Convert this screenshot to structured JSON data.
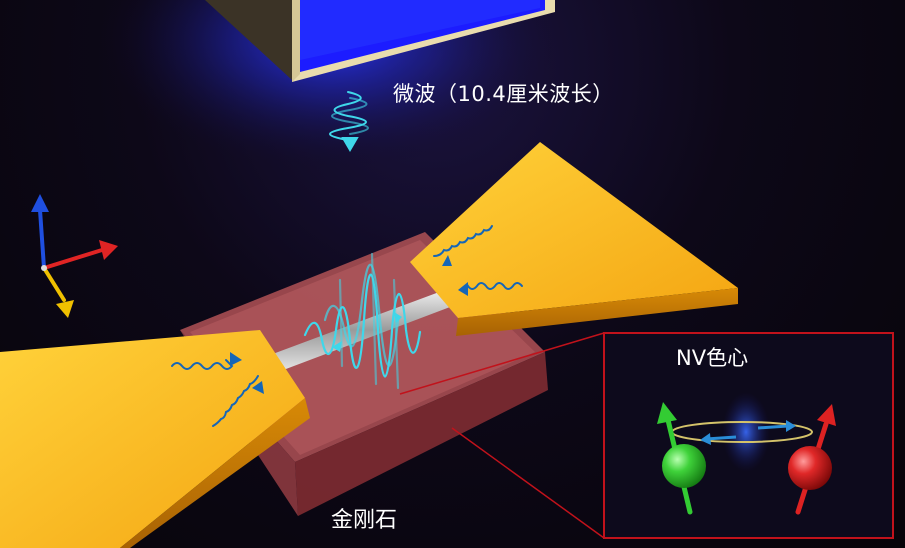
{
  "labels": {
    "microwave": "微波（10.4厘米波长）",
    "diamond": "金刚石",
    "nv_center": "NV色心"
  },
  "colors": {
    "background": "#0b0612",
    "gold_antenna": "#f6b61c",
    "diamond_slab": "#b85a5c",
    "microwave_waves": "#3fd7ea",
    "inset_border": "#c1121b",
    "spin_green": "#33cc33",
    "spin_red": "#dd2222",
    "axis_blue": "#1f4fe0",
    "axis_red": "#e02424",
    "axis_yellow": "#f0c000"
  },
  "icons": {
    "axes": "coordinate-axes-icon",
    "wave_packet": "wave-packet-icon",
    "spin_up": "spin-up-icon",
    "spin_down": "spin-down-icon"
  }
}
